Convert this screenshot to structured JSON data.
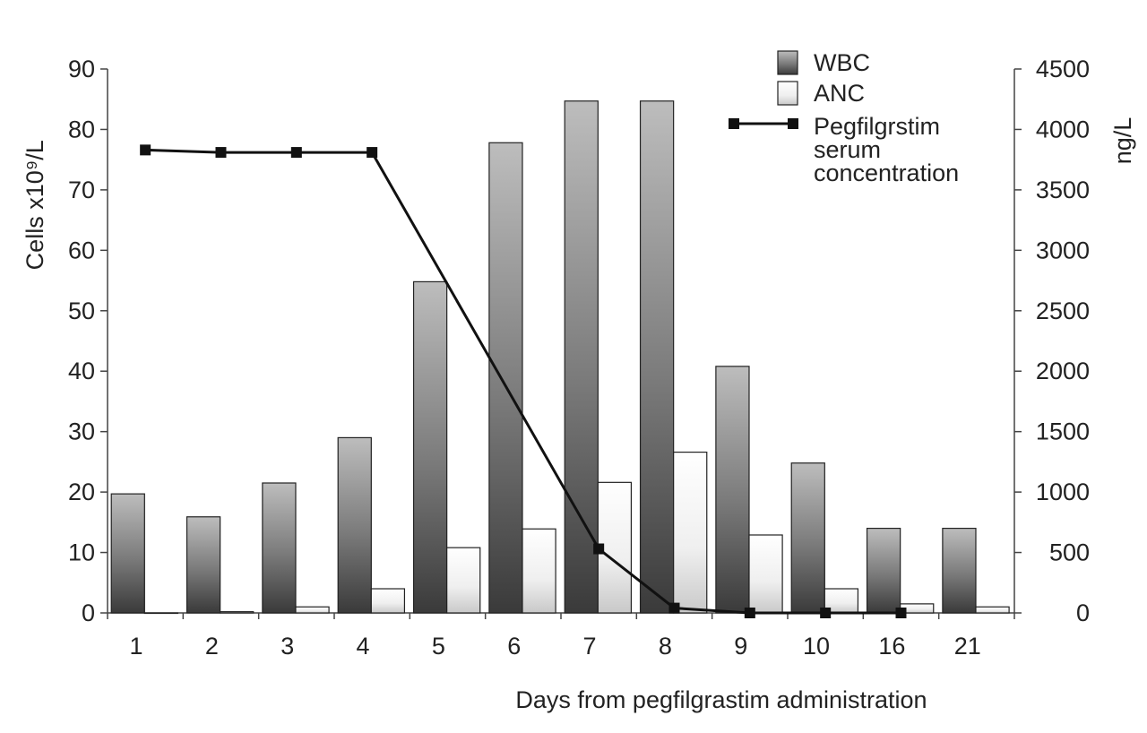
{
  "chart_data": {
    "type": "bar",
    "title": "",
    "categories": [
      "1",
      "2",
      "3",
      "4",
      "5",
      "6",
      "7",
      "8",
      "9",
      "10",
      "16",
      "21"
    ],
    "series": [
      {
        "name": "WBC",
        "kind": "bar",
        "axis": "left",
        "values": [
          19.7,
          15.9,
          21.5,
          29,
          54.8,
          77.8,
          84.7,
          84.7,
          40.8,
          24.8,
          14,
          14
        ]
      },
      {
        "name": "ANC",
        "kind": "bar",
        "axis": "left",
        "values": [
          0,
          0.2,
          1,
          4,
          10.8,
          13.9,
          21.6,
          26.6,
          12.9,
          4,
          1.5,
          1
        ]
      },
      {
        "name": "Pegfilgrstim serum concentration",
        "legend_lines": [
          "Pegfilgrstim",
          "serum",
          "concentration"
        ],
        "kind": "line",
        "axis": "right",
        "values": [
          3830,
          3810,
          3810,
          3810,
          null,
          null,
          530,
          40,
          0,
          0,
          0,
          null
        ]
      }
    ],
    "xlabel": "Days from pegfilgrastim administration",
    "ylabel_left": "Cells x10⁹/L",
    "ylabel_right": "ng/L",
    "ylim_left": [
      0,
      90
    ],
    "yticks_left": [
      "0",
      "10",
      "20",
      "30",
      "40",
      "50",
      "60",
      "70",
      "80",
      "90"
    ],
    "ylim_right": [
      0,
      4500
    ],
    "yticks_right": [
      "0",
      "500",
      "1000",
      "1500",
      "2000",
      "2500",
      "3000",
      "3500",
      "4000",
      "4500"
    ],
    "grid": false,
    "legend_position": "top-right",
    "colors": {
      "wbc_dark": "#3a3a3a",
      "wbc_light": "#bdbdbd",
      "anc_dark": "#cfcfcf",
      "anc_light": "#ffffff",
      "line": "#111111"
    }
  }
}
